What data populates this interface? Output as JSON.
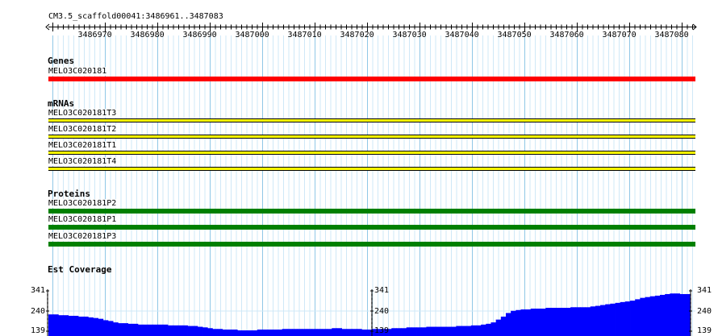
{
  "ruler": {
    "location": "CM3.5_scaffold00041:3486961..3487083",
    "ticks": [
      "3486970",
      "3486980",
      "3486990",
      "3487000",
      "3487010",
      "3487020",
      "3487030",
      "3487040",
      "3487050",
      "3487060",
      "3487070",
      "3487080"
    ]
  },
  "tracks": {
    "genes": {
      "title": "Genes",
      "color": "#ff0000",
      "features": [
        {
          "label": "MELO3C020181"
        }
      ]
    },
    "mrnas": {
      "title": "mRNAs",
      "fill_color": "#ffff00",
      "outline_color": "#000000",
      "features": [
        {
          "label": "MELO3C020181T3"
        },
        {
          "label": "MELO3C020181T2"
        },
        {
          "label": "MELO3C020181T1"
        },
        {
          "label": "MELO3C020181T4"
        }
      ]
    },
    "proteins": {
      "title": "Proteins",
      "color": "#008000",
      "features": [
        {
          "label": "MELO3C020181P2"
        },
        {
          "label": "MELO3C020181P1"
        },
        {
          "label": "MELO3C020181P3"
        }
      ]
    },
    "coverage": {
      "title": "Est Coverage",
      "color": "#0000ff",
      "scale_labels": {
        "max": "341",
        "mid": "240",
        "min": "139"
      },
      "y_range": [
        139,
        341
      ],
      "values": [
        223,
        223,
        219,
        219,
        216,
        216,
        212,
        212,
        208,
        205,
        201,
        194,
        190,
        183,
        179,
        179,
        176,
        176,
        172,
        172,
        172,
        172,
        172,
        172,
        168,
        168,
        168,
        168,
        165,
        165,
        161,
        158,
        154,
        150,
        150,
        147,
        147,
        147,
        143,
        143,
        143,
        143,
        147,
        147,
        147,
        147,
        147,
        150,
        150,
        150,
        150,
        150,
        150,
        150,
        150,
        150,
        150,
        154,
        154,
        150,
        150,
        150,
        150,
        147,
        147,
        150,
        150,
        150,
        150,
        154,
        154,
        154,
        158,
        158,
        158,
        158,
        161,
        161,
        161,
        161,
        161,
        161,
        165,
        165,
        165,
        168,
        168,
        172,
        176,
        183,
        197,
        212,
        230,
        241,
        245,
        248,
        248,
        252,
        252,
        252,
        256,
        256,
        256,
        256,
        256,
        259,
        259,
        259,
        259,
        263,
        266,
        270,
        274,
        277,
        281,
        285,
        288,
        292,
        299,
        306,
        310,
        314,
        317,
        321,
        325,
        328,
        328,
        325,
        325
      ]
    }
  }
}
